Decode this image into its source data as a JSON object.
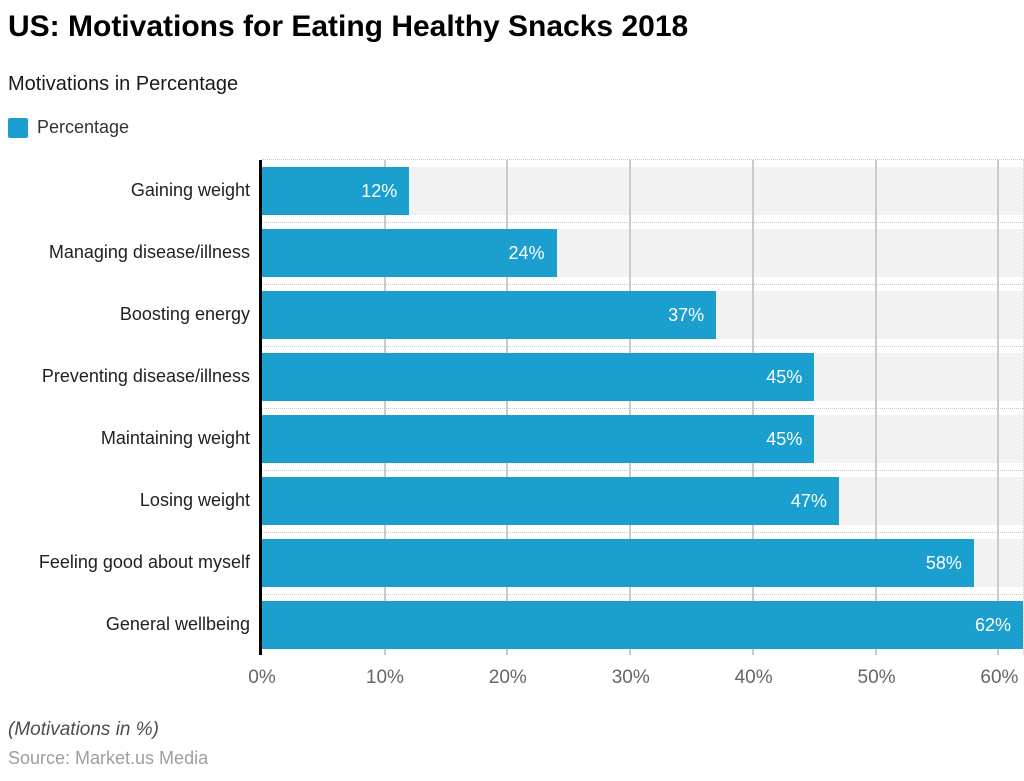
{
  "chart_data": {
    "type": "bar",
    "orientation": "horizontal",
    "title": "US: Motivations for Eating Healthy Snacks 2018",
    "subtitle": "Motivations in Percentage",
    "legend_label": "Percentage",
    "categories": [
      "Gaining weight",
      "Managing disease/illness",
      "Boosting energy",
      "Preventing disease/illness",
      "Maintaining weight",
      "Losing weight",
      "Feeling good about myself",
      "General wellbeing"
    ],
    "values": [
      12,
      24,
      37,
      45,
      45,
      47,
      58,
      62
    ],
    "value_labels": [
      "12%",
      "24%",
      "37%",
      "45%",
      "45%",
      "47%",
      "58%",
      "62%"
    ],
    "xlim": [
      0,
      62
    ],
    "x_tick_values": [
      0,
      10,
      20,
      30,
      40,
      50,
      60
    ],
    "x_ticks": [
      "0%",
      "10%",
      "20%",
      "30%",
      "40%",
      "50%",
      "60%"
    ],
    "grid": "on",
    "legend_position": "top-left",
    "footnote": "(Motivations in %)",
    "source": "Source: Market.us Media",
    "colors": {
      "bar": "#1a9fce",
      "band": "#f2f2f2",
      "grid": "#cbcbcb",
      "dotted": "#c9c9c9",
      "axis": "#000000",
      "title": "#000000",
      "subtitle": "#1a1a1a",
      "legend_text": "#333333",
      "category_text": "#212121",
      "value_text": "#ffffff",
      "tick_text": "#666666",
      "footnote_text": "#4d4d4d",
      "source_text": "#9e9e9e"
    }
  }
}
